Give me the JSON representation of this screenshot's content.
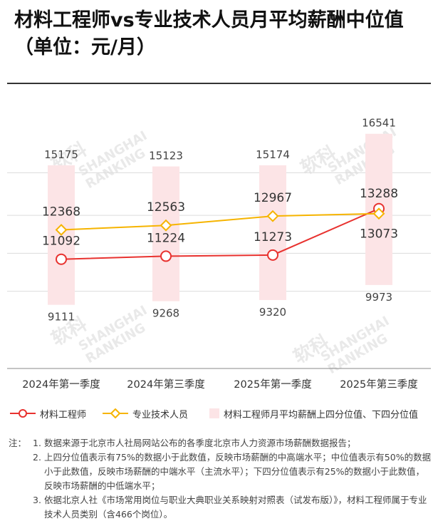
{
  "title": "材料工程师vs专业技术人员月平均薪酬中位值（单位：元/月）",
  "watermark": {
    "cn": "软科",
    "en1": "SHANGHAI",
    "en2": "RANKING"
  },
  "chart_data": {
    "type": "line",
    "categories": [
      "2024年第一季度",
      "2024年第三季度",
      "2025年第一季度",
      "2025年第三季度"
    ],
    "series": [
      {
        "name": "材料工程师",
        "values": [
          11092,
          11224,
          11273,
          13288
        ],
        "color": "#e8322f",
        "marker": "circle"
      },
      {
        "name": "专业技术人员",
        "values": [
          12368,
          12563,
          12967,
          13073
        ],
        "color": "#f6b400",
        "marker": "diamond"
      }
    ],
    "range_series": {
      "name": "材料工程师月平均薪酬上四分位值、下四分位值",
      "upper": [
        15175,
        15123,
        15174,
        16541
      ],
      "lower": [
        9111,
        9268,
        9320,
        9973
      ],
      "color": "#fce4e6"
    },
    "ylim": [
      7800,
      17400
    ],
    "gridlines": [
      9700,
      11350,
      13000,
      14850
    ],
    "grid_color": "#dcdcdc"
  },
  "legend": {
    "s1": "材料工程师",
    "s2": "专业技术人员",
    "range": "材料工程师月平均薪酬上四分位值、下四分位值"
  },
  "notes": {
    "lead": "注：",
    "items": [
      "数据来源于北京市人社局网站公布的各季度北京市人力资源市场薪酬数据报告；",
      "上四分位值表示有75%的数据小于此数值，反映市场薪酬的中高端水平；中位值表示有50%的数据小于此数值，反映市场薪酬的中端水平（主流水平）；下四分位值表示有25%的数据小于此数值，反映市场薪酬的中低端水平；",
      "依据北京人社《市场常用岗位与职业大典职业关系映射对照表（试发布版）》，材料工程师属于专业技术人员类别（含466个岗位）。"
    ]
  }
}
